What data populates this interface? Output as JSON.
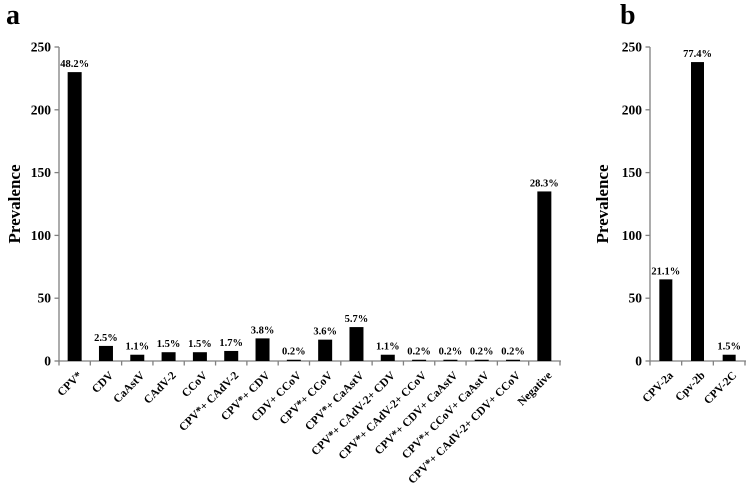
{
  "figure": {
    "background": "#ffffff",
    "bar_color": "#000000",
    "axis_color": "#808080",
    "text_color": "#000000",
    "panels": [
      {
        "letter": "a"
      },
      {
        "letter": "b"
      }
    ]
  },
  "chart_data": [
    {
      "type": "bar",
      "panel": "a",
      "title": "",
      "xlabel": "",
      "ylabel": "Prevalence",
      "ylim": [
        0,
        250
      ],
      "yticks": [
        0,
        50,
        100,
        150,
        200,
        250
      ],
      "grid": false,
      "legend": "none",
      "categories": [
        "CPV*",
        "CDV",
        "CaAstV",
        "CAdV-2",
        "CCoV",
        "CPV*+ CAdV-2",
        "CPV*+ CDV",
        "CDV+ CCoV",
        "CPV*+ CCoV",
        "CPV*+ CaAstV",
        "CPV*+ CAdV-2+ CDV",
        "CPV*+ CAdV-2+ CCoV",
        "CPV*+ CDV+ CaAstV",
        "CPV*+ CCoV+ CaAstV",
        "CPV*+ CAdV-2+ CDV+ CCoV",
        "Negative"
      ],
      "values": [
        230,
        12,
        5,
        7,
        7,
        8,
        18,
        1,
        17,
        27,
        5,
        1,
        1,
        1,
        1,
        135
      ],
      "bar_labels": [
        "48.2%",
        "2.5%",
        "1.1%",
        "1.5%",
        "1.5%",
        "1.7%",
        "3.8%",
        "0.2%",
        "3.6%",
        "5.7%",
        "1.1%",
        "0.2%",
        "0.2%",
        "0.2%",
        "0.2%",
        "28.3%"
      ]
    },
    {
      "type": "bar",
      "panel": "b",
      "title": "",
      "xlabel": "",
      "ylabel": "Prevalence",
      "ylim": [
        0,
        250
      ],
      "yticks": [
        0,
        50,
        100,
        150,
        200,
        250
      ],
      "grid": false,
      "legend": "none",
      "categories": [
        "CPV-2a",
        "Cpv-2b",
        "CPV-2C"
      ],
      "values": [
        65,
        238,
        5
      ],
      "bar_labels": [
        "21.1%",
        "77.4%",
        "1.5%"
      ]
    }
  ]
}
